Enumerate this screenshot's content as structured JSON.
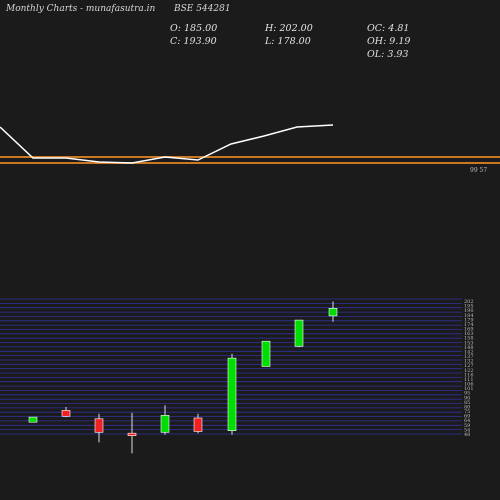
{
  "header": {
    "site_left": "Monthly Charts",
    "site_mid": "- munafasutra.in",
    "symbol": "BSE 544281"
  },
  "stats": {
    "open": "O: 185.00",
    "close": "C: 193.90",
    "high": "H: 202.00",
    "low": "L: 178.00",
    "oc": "OC: 4.81",
    "oh": "OH: 9.19",
    "ol": "OL: 3.93"
  },
  "colors": {
    "background": "#1b1b1b",
    "up": "#00dd00",
    "down": "#ee2222",
    "ma_line": "#ffffff",
    "level_band": "#cc7722",
    "grid": "#3030a0"
  },
  "chart_data": [
    {
      "type": "line",
      "title": "",
      "level_label": "99 57",
      "series": [
        {
          "values": [
            127,
            158,
            158,
            162,
            163,
            157,
            160,
            144,
            136,
            127,
            125
          ]
        }
      ]
    },
    {
      "type": "candlestick",
      "ylabels": [
        "202",
        "195",
        "190",
        "184",
        "179",
        "174",
        "169",
        "163",
        "158",
        "153",
        "148",
        "142",
        "137",
        "132",
        "127",
        "122",
        "116",
        "111",
        "106",
        "101",
        "95",
        "90",
        "85",
        "80",
        "75",
        "69",
        "64",
        "59",
        "54",
        "48"
      ],
      "ylim": [
        45,
        205
      ],
      "candles": [
        {
          "open": 59,
          "close": 65,
          "high": 65,
          "low": 59
        },
        {
          "open": 73,
          "close": 66,
          "high": 77,
          "low": 65
        },
        {
          "open": 63,
          "close": 47,
          "high": 69,
          "low": 35
        },
        {
          "open": 46,
          "close": 43,
          "high": 70,
          "low": 22
        },
        {
          "open": 47,
          "close": 67,
          "high": 79,
          "low": 44
        },
        {
          "open": 64,
          "close": 48,
          "high": 69,
          "low": 46
        },
        {
          "open": 49,
          "close": 135,
          "high": 140,
          "low": 44
        },
        {
          "open": 125,
          "close": 155,
          "high": 155,
          "low": 125
        },
        {
          "open": 149,
          "close": 180,
          "high": 180,
          "low": 148
        },
        {
          "open": 185,
          "close": 194,
          "high": 202,
          "low": 178
        }
      ]
    }
  ]
}
